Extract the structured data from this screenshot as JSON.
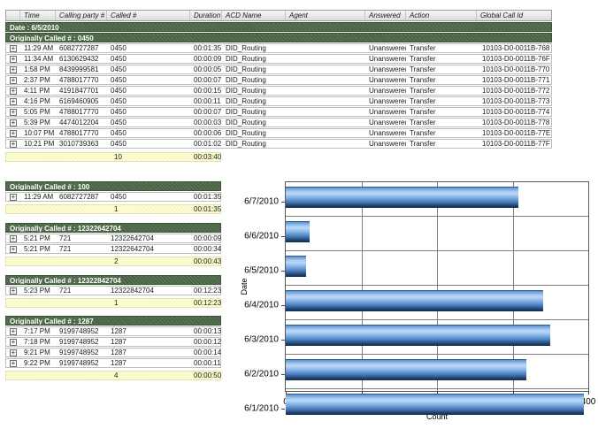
{
  "icons": {
    "expand": "+"
  },
  "report": {
    "columns": {
      "time": "Time",
      "calling": "Calling party #",
      "called": "Called #",
      "duration": "Duration",
      "acd": "ACD Name",
      "agent": "Agent",
      "answered": "Answered",
      "action": "Action",
      "global_id": "Global Call Id"
    },
    "date_header": "Date : 6/5/2010",
    "groups": [
      {
        "header": "Originally Called # : 0450",
        "rows": [
          {
            "time": "11:29 AM",
            "calling": "6082727287",
            "called": "0450",
            "duration": "00:01:35",
            "acd": "DID_Routing",
            "agent": "",
            "answered": "Unanswered",
            "action": "Transfer",
            "global_id": "10103-D0-0011B-768"
          },
          {
            "time": "11:34 AM",
            "calling": "6130629432",
            "called": "0450",
            "duration": "00:00:09",
            "acd": "DID_Routing",
            "agent": "",
            "answered": "Unanswered",
            "action": "Transfer",
            "global_id": "10103-D0-0011B-76F"
          },
          {
            "time": "1:58 PM",
            "calling": "8439999581",
            "called": "0450",
            "duration": "00:00:05",
            "acd": "DID_Routing",
            "agent": "",
            "answered": "Unanswered",
            "action": "Transfer",
            "global_id": "10103-D0-0011B-770"
          },
          {
            "time": "2:37 PM",
            "calling": "4788017770",
            "called": "0450",
            "duration": "00:00:07",
            "acd": "DID_Routing",
            "agent": "",
            "answered": "Unanswered",
            "action": "Transfer",
            "global_id": "10103-D0-0011B-771"
          },
          {
            "time": "4:11 PM",
            "calling": "4191847701",
            "called": "0450",
            "duration": "00:00:15",
            "acd": "DID_Routing",
            "agent": "",
            "answered": "Unanswered",
            "action": "Transfer",
            "global_id": "10103-D0-0011B-772"
          },
          {
            "time": "4:16 PM",
            "calling": "6169460905",
            "called": "0450",
            "duration": "00:00:11",
            "acd": "DID_Routing",
            "agent": "",
            "answered": "Unanswered",
            "action": "Transfer",
            "global_id": "10103-D0-0011B-773"
          },
          {
            "time": "5:05 PM",
            "calling": "4788017770",
            "called": "0450",
            "duration": "00:00:07",
            "acd": "DID_Routing",
            "agent": "",
            "answered": "Unanswered",
            "action": "Transfer",
            "global_id": "10103-D0-0011B-774"
          },
          {
            "time": "5:39 PM",
            "calling": "4474012204",
            "called": "0450",
            "duration": "00:00:03",
            "acd": "DID_Routing",
            "agent": "",
            "answered": "Unanswered",
            "action": "Transfer",
            "global_id": "10103-D0-0011B-778"
          },
          {
            "time": "10:07 PM",
            "calling": "4788017770",
            "called": "0450",
            "duration": "00:00:06",
            "acd": "DID_Routing",
            "agent": "",
            "answered": "Unanswered",
            "action": "Transfer",
            "global_id": "10103-D0-0011B-77E"
          },
          {
            "time": "10:21 PM",
            "calling": "3010739363",
            "called": "0450",
            "duration": "00:01:02",
            "acd": "DID_Routing",
            "agent": "",
            "answered": "Unanswered",
            "action": "Transfer",
            "global_id": "10103-D0-0011B-77F"
          }
        ],
        "summary": {
          "count": "10",
          "total_duration": "00:03:40"
        }
      },
      {
        "header": "Originally Called # : 100",
        "rows": [
          {
            "time": "11:29 AM",
            "calling": "6082727287",
            "called": "0450",
            "duration": "00:01:35"
          }
        ],
        "summary": {
          "count": "1",
          "total_duration": "00:01:35"
        }
      },
      {
        "header": "Originally Called # : 12322642704",
        "rows": [
          {
            "time": "5:21 PM",
            "calling": "721",
            "called": "12322642704",
            "duration": "00:00:09"
          },
          {
            "time": "5:21 PM",
            "calling": "721",
            "called": "12322642704",
            "duration": "00:00:34"
          }
        ],
        "summary": {
          "count": "2",
          "total_duration": "00:00:43"
        }
      },
      {
        "header": "Originally Called # : 12322842704",
        "rows": [
          {
            "time": "5:23 PM",
            "calling": "721",
            "called": "12322842704",
            "duration": "00:12:23"
          }
        ],
        "summary": {
          "count": "1",
          "total_duration": "00:12:23"
        }
      },
      {
        "header": "Originally Called # : 1287",
        "rows": [
          {
            "time": "7:17 PM",
            "calling": "9199748952",
            "called": "1287",
            "duration": "00:00:13"
          },
          {
            "time": "7:18 PM",
            "calling": "9199748952",
            "called": "1287",
            "duration": "00:00:12"
          },
          {
            "time": "9:21 PM",
            "calling": "9199748952",
            "called": "1287",
            "duration": "00:00:14"
          },
          {
            "time": "9:22 PM",
            "calling": "9199748952",
            "called": "1287",
            "duration": "00:00:11"
          }
        ],
        "summary": {
          "count": "4",
          "total_duration": "00:00:50"
        }
      }
    ]
  },
  "chart_data": {
    "type": "bar",
    "orientation": "horizontal",
    "categories": [
      "6/7/2010",
      "6/6/2010",
      "6/5/2010",
      "6/4/2010",
      "6/3/2010",
      "6/2/2010",
      "6/1/2010"
    ],
    "values": [
      308,
      32,
      27,
      340,
      350,
      318,
      394
    ],
    "title": "",
    "xlabel": "Count",
    "ylabel": "Date",
    "xlim": [
      0,
      400
    ],
    "xticks": [
      0,
      100,
      200,
      300,
      400
    ],
    "grid": true,
    "legend": "none",
    "bar_color": "#5b9bd5",
    "grid_color": "#808080"
  }
}
